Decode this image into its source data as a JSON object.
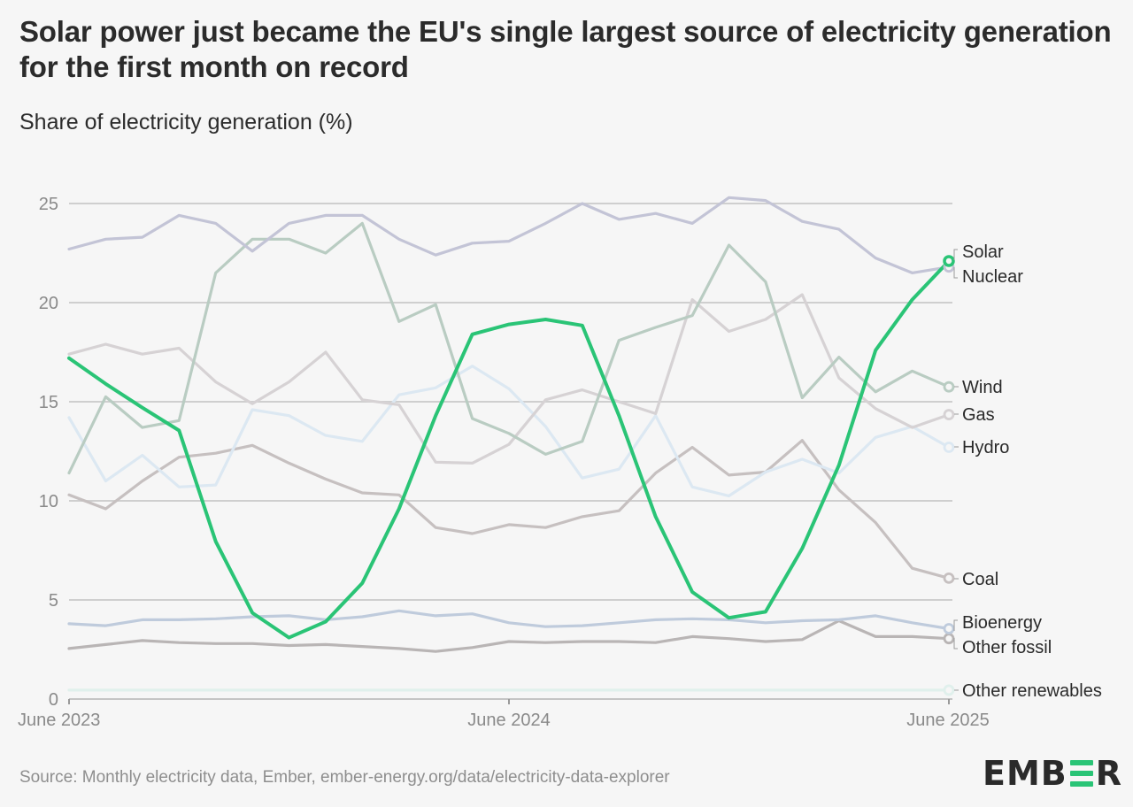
{
  "header": {
    "title": "Solar power just became the EU's single largest source of electricity generation for the first month on record",
    "subtitle": "Share of electricity generation (%)"
  },
  "footer": {
    "source": "Source: Monthly electricity data, Ember, ember-energy.org/data/electricity-data-explorer",
    "logo_left": "EMB",
    "logo_right": "R",
    "logo_accent": "#2ac476"
  },
  "chart_data": {
    "type": "line",
    "title": "Solar power just became the EU's single largest source of electricity generation for the first month on record",
    "ylabel": "Share of electricity generation (%)",
    "xlabel": "",
    "ylim": [
      0,
      25
    ],
    "yticks": [
      0,
      5,
      10,
      15,
      20,
      25
    ],
    "xtick_labels": [
      {
        "index": 0,
        "label": "June 2023"
      },
      {
        "index": 12,
        "label": "June 2024"
      },
      {
        "index": 24,
        "label": "June 2025"
      }
    ],
    "x": [
      "2023-06",
      "2023-07",
      "2023-08",
      "2023-09",
      "2023-10",
      "2023-11",
      "2023-12",
      "2024-01",
      "2024-02",
      "2024-03",
      "2024-04",
      "2024-05",
      "2024-06",
      "2024-07",
      "2024-08",
      "2024-09",
      "2024-10",
      "2024-11",
      "2024-12",
      "2025-01",
      "2025-02",
      "2025-03",
      "2025-04",
      "2025-05",
      "2025-06"
    ],
    "grid": true,
    "legend": "direct labels at right end",
    "series": [
      {
        "name": "Other renewables",
        "color": "#e0f0ec",
        "highlight": false,
        "values": [
          0.45,
          0.45,
          0.45,
          0.45,
          0.45,
          0.45,
          0.45,
          0.45,
          0.45,
          0.45,
          0.45,
          0.45,
          0.45,
          0.45,
          0.45,
          0.45,
          0.45,
          0.45,
          0.45,
          0.45,
          0.45,
          0.45,
          0.45,
          0.45,
          0.45
        ]
      },
      {
        "name": "Other fossil",
        "color": "#b9b5b5",
        "highlight": false,
        "values": [
          2.55,
          2.75,
          2.95,
          2.85,
          2.8,
          2.8,
          2.7,
          2.75,
          2.65,
          2.55,
          2.4,
          2.6,
          2.9,
          2.85,
          2.9,
          2.9,
          2.85,
          3.15,
          3.05,
          2.9,
          3.0,
          3.95,
          3.15,
          3.15,
          3.05
        ]
      },
      {
        "name": "Bioenergy",
        "color": "#bfcbdc",
        "highlight": false,
        "values": [
          3.8,
          3.7,
          4.0,
          4.0,
          4.05,
          4.15,
          4.2,
          4.0,
          4.15,
          4.45,
          4.2,
          4.3,
          3.85,
          3.65,
          3.7,
          3.85,
          4.0,
          4.05,
          4.0,
          3.85,
          3.95,
          4.0,
          4.2,
          3.85,
          3.55
        ]
      },
      {
        "name": "Coal",
        "color": "#c6c0c0",
        "highlight": false,
        "values": [
          10.3,
          9.6,
          11.0,
          12.2,
          12.4,
          12.8,
          11.9,
          11.1,
          10.4,
          10.3,
          8.65,
          8.35,
          8.8,
          8.65,
          9.2,
          9.5,
          11.4,
          12.7,
          11.3,
          11.45,
          13.05,
          10.55,
          8.9,
          6.6,
          6.1
        ]
      },
      {
        "name": "Hydro",
        "color": "#dce8f2",
        "highlight": false,
        "values": [
          14.2,
          11.0,
          12.3,
          10.7,
          10.8,
          14.6,
          14.3,
          13.3,
          13.0,
          15.35,
          15.7,
          16.8,
          15.65,
          13.75,
          11.15,
          11.6,
          14.3,
          10.7,
          10.25,
          11.45,
          12.1,
          11.4,
          13.2,
          13.75,
          12.7
        ]
      },
      {
        "name": "Gas",
        "color": "#d6d2d4",
        "highlight": false,
        "values": [
          17.4,
          17.9,
          17.4,
          17.7,
          16.0,
          14.9,
          16.0,
          17.5,
          15.1,
          14.85,
          11.95,
          11.9,
          12.85,
          15.1,
          15.6,
          15.0,
          14.4,
          20.15,
          18.55,
          19.15,
          20.4,
          16.2,
          14.65,
          13.7,
          14.35
        ]
      },
      {
        "name": "Wind",
        "color": "#b9ccc2",
        "highlight": false,
        "values": [
          11.4,
          15.25,
          13.7,
          14.05,
          21.5,
          23.2,
          23.2,
          22.5,
          24.0,
          19.05,
          19.9,
          14.15,
          13.4,
          12.35,
          13.0,
          18.1,
          18.75,
          19.35,
          22.9,
          21.05,
          15.2,
          17.25,
          15.5,
          16.55,
          15.75
        ]
      },
      {
        "name": "Nuclear",
        "color": "#c3c4d6",
        "highlight": false,
        "values": [
          22.7,
          23.2,
          23.3,
          24.4,
          24.0,
          22.6,
          24.0,
          24.4,
          24.4,
          23.2,
          22.4,
          23.0,
          23.1,
          24.0,
          25.0,
          24.2,
          24.5,
          24.0,
          25.3,
          25.15,
          24.1,
          23.7,
          22.25,
          21.5,
          21.8
        ]
      },
      {
        "name": "Solar",
        "color": "#2ac476",
        "highlight": true,
        "values": [
          17.2,
          15.9,
          14.7,
          13.55,
          7.95,
          4.35,
          3.1,
          3.9,
          5.85,
          9.6,
          14.3,
          18.4,
          18.9,
          19.15,
          18.85,
          14.3,
          9.2,
          5.4,
          4.1,
          4.4,
          7.6,
          11.8,
          17.6,
          20.15,
          22.1
        ]
      }
    ],
    "end_labels": [
      {
        "name": "Solar",
        "bracket": "top"
      },
      {
        "name": "Nuclear",
        "bracket": "bottom"
      },
      {
        "name": "Wind",
        "bracket": "none"
      },
      {
        "name": "Gas",
        "bracket": "none"
      },
      {
        "name": "Hydro",
        "bracket": "none"
      },
      {
        "name": "Coal",
        "bracket": "none"
      },
      {
        "name": "Bioenergy",
        "bracket": "top"
      },
      {
        "name": "Other fossil",
        "bracket": "bottom"
      },
      {
        "name": "Other renewables",
        "bracket": "none"
      }
    ]
  }
}
